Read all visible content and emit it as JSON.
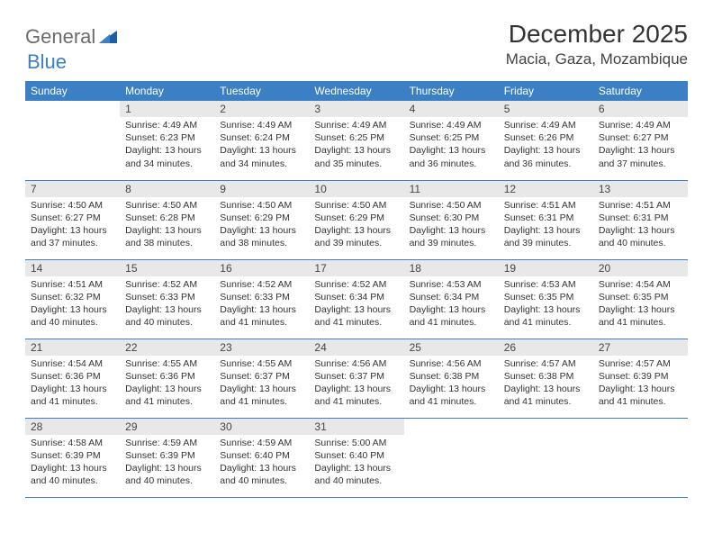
{
  "logo": {
    "part1": "General",
    "part2": "Blue"
  },
  "title": "December 2025",
  "location": "Macia, Gaza, Mozambique",
  "colors": {
    "header_bg": "#3b7fc4",
    "header_text": "#ffffff",
    "daynum_bg": "#e8e8e8",
    "border": "#3b7fc4",
    "logo_gray": "#6b6b6b",
    "logo_blue": "#3b7fc4"
  },
  "day_headers": [
    "Sunday",
    "Monday",
    "Tuesday",
    "Wednesday",
    "Thursday",
    "Friday",
    "Saturday"
  ],
  "weeks": [
    [
      {
        "n": "",
        "sr": "",
        "ss": "",
        "dl": ""
      },
      {
        "n": "1",
        "sr": "4:49 AM",
        "ss": "6:23 PM",
        "dl": "13 hours and 34 minutes."
      },
      {
        "n": "2",
        "sr": "4:49 AM",
        "ss": "6:24 PM",
        "dl": "13 hours and 34 minutes."
      },
      {
        "n": "3",
        "sr": "4:49 AM",
        "ss": "6:25 PM",
        "dl": "13 hours and 35 minutes."
      },
      {
        "n": "4",
        "sr": "4:49 AM",
        "ss": "6:25 PM",
        "dl": "13 hours and 36 minutes."
      },
      {
        "n": "5",
        "sr": "4:49 AM",
        "ss": "6:26 PM",
        "dl": "13 hours and 36 minutes."
      },
      {
        "n": "6",
        "sr": "4:49 AM",
        "ss": "6:27 PM",
        "dl": "13 hours and 37 minutes."
      }
    ],
    [
      {
        "n": "7",
        "sr": "4:50 AM",
        "ss": "6:27 PM",
        "dl": "13 hours and 37 minutes."
      },
      {
        "n": "8",
        "sr": "4:50 AM",
        "ss": "6:28 PM",
        "dl": "13 hours and 38 minutes."
      },
      {
        "n": "9",
        "sr": "4:50 AM",
        "ss": "6:29 PM",
        "dl": "13 hours and 38 minutes."
      },
      {
        "n": "10",
        "sr": "4:50 AM",
        "ss": "6:29 PM",
        "dl": "13 hours and 39 minutes."
      },
      {
        "n": "11",
        "sr": "4:50 AM",
        "ss": "6:30 PM",
        "dl": "13 hours and 39 minutes."
      },
      {
        "n": "12",
        "sr": "4:51 AM",
        "ss": "6:31 PM",
        "dl": "13 hours and 39 minutes."
      },
      {
        "n": "13",
        "sr": "4:51 AM",
        "ss": "6:31 PM",
        "dl": "13 hours and 40 minutes."
      }
    ],
    [
      {
        "n": "14",
        "sr": "4:51 AM",
        "ss": "6:32 PM",
        "dl": "13 hours and 40 minutes."
      },
      {
        "n": "15",
        "sr": "4:52 AM",
        "ss": "6:33 PM",
        "dl": "13 hours and 40 minutes."
      },
      {
        "n": "16",
        "sr": "4:52 AM",
        "ss": "6:33 PM",
        "dl": "13 hours and 41 minutes."
      },
      {
        "n": "17",
        "sr": "4:52 AM",
        "ss": "6:34 PM",
        "dl": "13 hours and 41 minutes."
      },
      {
        "n": "18",
        "sr": "4:53 AM",
        "ss": "6:34 PM",
        "dl": "13 hours and 41 minutes."
      },
      {
        "n": "19",
        "sr": "4:53 AM",
        "ss": "6:35 PM",
        "dl": "13 hours and 41 minutes."
      },
      {
        "n": "20",
        "sr": "4:54 AM",
        "ss": "6:35 PM",
        "dl": "13 hours and 41 minutes."
      }
    ],
    [
      {
        "n": "21",
        "sr": "4:54 AM",
        "ss": "6:36 PM",
        "dl": "13 hours and 41 minutes."
      },
      {
        "n": "22",
        "sr": "4:55 AM",
        "ss": "6:36 PM",
        "dl": "13 hours and 41 minutes."
      },
      {
        "n": "23",
        "sr": "4:55 AM",
        "ss": "6:37 PM",
        "dl": "13 hours and 41 minutes."
      },
      {
        "n": "24",
        "sr": "4:56 AM",
        "ss": "6:37 PM",
        "dl": "13 hours and 41 minutes."
      },
      {
        "n": "25",
        "sr": "4:56 AM",
        "ss": "6:38 PM",
        "dl": "13 hours and 41 minutes."
      },
      {
        "n": "26",
        "sr": "4:57 AM",
        "ss": "6:38 PM",
        "dl": "13 hours and 41 minutes."
      },
      {
        "n": "27",
        "sr": "4:57 AM",
        "ss": "6:39 PM",
        "dl": "13 hours and 41 minutes."
      }
    ],
    [
      {
        "n": "28",
        "sr": "4:58 AM",
        "ss": "6:39 PM",
        "dl": "13 hours and 40 minutes."
      },
      {
        "n": "29",
        "sr": "4:59 AM",
        "ss": "6:39 PM",
        "dl": "13 hours and 40 minutes."
      },
      {
        "n": "30",
        "sr": "4:59 AM",
        "ss": "6:40 PM",
        "dl": "13 hours and 40 minutes."
      },
      {
        "n": "31",
        "sr": "5:00 AM",
        "ss": "6:40 PM",
        "dl": "13 hours and 40 minutes."
      },
      {
        "n": "",
        "sr": "",
        "ss": "",
        "dl": ""
      },
      {
        "n": "",
        "sr": "",
        "ss": "",
        "dl": ""
      },
      {
        "n": "",
        "sr": "",
        "ss": "",
        "dl": ""
      }
    ]
  ],
  "labels": {
    "sunrise": "Sunrise:",
    "sunset": "Sunset:",
    "daylight": "Daylight:"
  }
}
